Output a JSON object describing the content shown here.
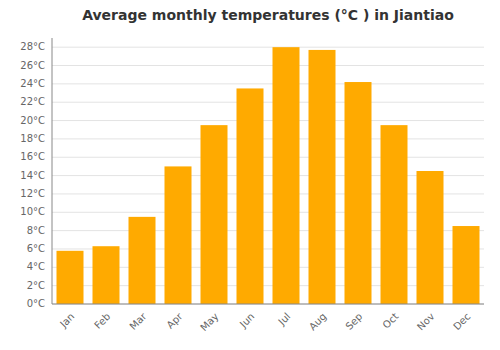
{
  "chart_data": {
    "type": "bar",
    "title": "Average monthly temperatures (°C ) in Jiantiao",
    "categories": [
      "Jan",
      "Feb",
      "Mar",
      "Apr",
      "May",
      "Jun",
      "Jul",
      "Aug",
      "Sep",
      "Oct",
      "Nov",
      "Dec"
    ],
    "values": [
      5.8,
      6.3,
      9.5,
      15.0,
      19.5,
      23.5,
      28.0,
      27.7,
      24.2,
      19.5,
      14.5,
      8.5
    ],
    "color": "#FFAA00",
    "ylim": [
      0,
      29
    ],
    "yticks": [
      {
        "value": 0,
        "label": "0°C"
      },
      {
        "value": 2,
        "label": "2°C"
      },
      {
        "value": 4,
        "label": "4°C"
      },
      {
        "value": 6,
        "label": "6°C"
      },
      {
        "value": 8,
        "label": "8°C"
      },
      {
        "value": 10,
        "label": "10°C"
      },
      {
        "value": 12,
        "label": "12°C"
      },
      {
        "value": 14,
        "label": "14°C"
      },
      {
        "value": 16,
        "label": "16°C"
      },
      {
        "value": 18,
        "label": "18°C"
      },
      {
        "value": 20,
        "label": "20°C"
      },
      {
        "value": 22,
        "label": "22°C"
      },
      {
        "value": 24,
        "label": "24°C"
      },
      {
        "value": 26,
        "label": "26°C"
      },
      {
        "value": 28,
        "label": "28°C"
      }
    ],
    "grid": true
  }
}
